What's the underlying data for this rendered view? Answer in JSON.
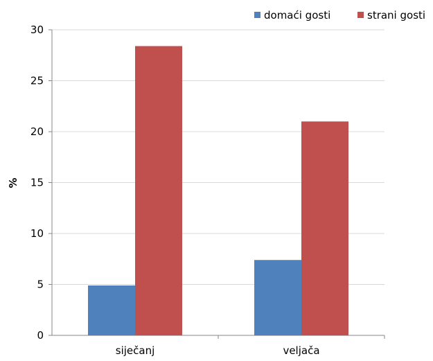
{
  "chart_data": {
    "type": "bar",
    "title": "",
    "xlabel": "",
    "ylabel": "%",
    "categories": [
      "siječanj",
      "veljača"
    ],
    "series": [
      {
        "name": "domaći gosti",
        "values": [
          4.9,
          7.4
        ],
        "color": "#4F81BD"
      },
      {
        "name": "strani gosti",
        "values": [
          28.4,
          21.0
        ],
        "color": "#C0504D"
      }
    ],
    "ylim": [
      0,
      30
    ],
    "yticks": [
      0,
      5,
      10,
      15,
      20,
      25,
      30
    ],
    "grid": true,
    "legend_position": "top-right"
  }
}
